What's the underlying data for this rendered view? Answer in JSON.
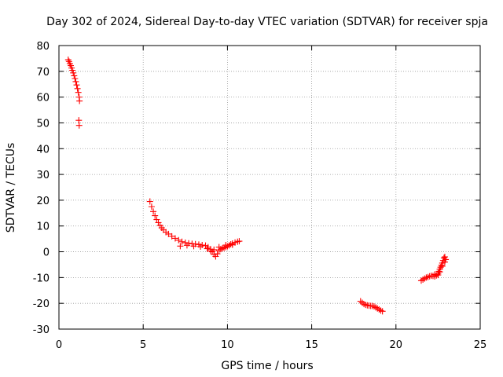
{
  "chart_data": {
    "type": "scatter",
    "title": "Day 302 of 2024, Sidereal Day-to-day VTEC variation (SDTVAR) for receiver spja",
    "xlabel": "GPS time / hours",
    "ylabel": "SDTVAR / TECUs",
    "xlim": [
      0,
      25
    ],
    "ylim": [
      -30,
      80
    ],
    "xticks": [
      0,
      5,
      10,
      15,
      20,
      25
    ],
    "xtick_labels": [
      "0",
      "5",
      "10",
      "15",
      "20",
      "25"
    ],
    "yticks": [
      -30,
      -20,
      -10,
      0,
      10,
      20,
      30,
      40,
      50,
      60,
      70,
      80
    ],
    "ytick_labels": [
      "-30",
      "-20",
      "-10",
      "0",
      "10",
      "20",
      "30",
      "40",
      "50",
      "60",
      "70",
      "80"
    ],
    "grid": true,
    "marker": "+",
    "color": "#ff0000",
    "series": [
      {
        "name": "segment-1",
        "points": [
          [
            0.55,
            74.5
          ],
          [
            0.6,
            73.8
          ],
          [
            0.65,
            73.0
          ],
          [
            0.7,
            72.2
          ],
          [
            0.75,
            71.3
          ],
          [
            0.8,
            70.4
          ],
          [
            0.85,
            69.4
          ],
          [
            0.9,
            68.3
          ],
          [
            0.95,
            67.2
          ],
          [
            1.0,
            66.0
          ],
          [
            1.05,
            64.7
          ],
          [
            1.1,
            63.3
          ],
          [
            1.15,
            61.8
          ],
          [
            1.2,
            60.0
          ],
          [
            1.22,
            58.5
          ],
          [
            1.18,
            51.0
          ],
          [
            1.2,
            49.0
          ]
        ]
      },
      {
        "name": "segment-2",
        "points": [
          [
            5.4,
            19.5
          ],
          [
            5.5,
            17.5
          ],
          [
            5.6,
            15.6
          ],
          [
            5.7,
            14.0
          ],
          [
            5.8,
            12.5
          ],
          [
            5.9,
            11.3
          ],
          [
            6.0,
            10.2
          ],
          [
            6.1,
            9.3
          ],
          [
            6.2,
            8.5
          ],
          [
            6.35,
            7.6
          ],
          [
            6.5,
            6.9
          ],
          [
            6.7,
            6.0
          ],
          [
            6.9,
            5.2
          ],
          [
            7.1,
            4.5
          ],
          [
            7.3,
            3.9
          ],
          [
            7.5,
            3.5
          ],
          [
            7.7,
            3.3
          ],
          [
            7.9,
            3.1
          ],
          [
            8.1,
            3.0
          ],
          [
            8.3,
            2.8
          ],
          [
            8.5,
            2.6
          ],
          [
            8.7,
            2.4
          ],
          [
            8.85,
            1.8
          ],
          [
            9.0,
            1.0
          ],
          [
            9.1,
            0.0
          ],
          [
            9.2,
            -1.0
          ],
          [
            9.3,
            -1.8
          ],
          [
            9.4,
            -0.8
          ],
          [
            9.5,
            0.4
          ],
          [
            9.6,
            1.0
          ],
          [
            9.7,
            1.3
          ],
          [
            9.8,
            1.5
          ],
          [
            9.9,
            1.8
          ],
          [
            10.0,
            2.1
          ],
          [
            10.1,
            2.5
          ],
          [
            10.2,
            2.9
          ],
          [
            10.3,
            3.2
          ],
          [
            10.45,
            3.6
          ],
          [
            10.6,
            3.9
          ],
          [
            10.7,
            4.1
          ],
          [
            7.2,
            2.2
          ],
          [
            7.6,
            2.5
          ],
          [
            8.0,
            2.2
          ],
          [
            8.4,
            2.0
          ],
          [
            8.8,
            1.2
          ],
          [
            9.0,
            0.3
          ],
          [
            9.2,
            0.8
          ],
          [
            9.5,
            1.8
          ],
          [
            9.9,
            2.6
          ],
          [
            10.3,
            2.7
          ]
        ]
      },
      {
        "name": "segment-3",
        "points": [
          [
            17.9,
            -19.2
          ],
          [
            18.0,
            -19.8
          ],
          [
            18.1,
            -20.3
          ],
          [
            18.2,
            -20.6
          ],
          [
            18.3,
            -20.8
          ],
          [
            18.4,
            -20.9
          ],
          [
            18.5,
            -21.0
          ],
          [
            18.6,
            -21.0
          ],
          [
            18.7,
            -21.2
          ],
          [
            18.8,
            -21.6
          ],
          [
            18.9,
            -22.0
          ],
          [
            19.0,
            -22.4
          ],
          [
            19.1,
            -22.8
          ],
          [
            19.2,
            -23.1
          ]
        ]
      },
      {
        "name": "segment-4",
        "points": [
          [
            21.5,
            -11.2
          ],
          [
            21.6,
            -10.8
          ],
          [
            21.7,
            -10.4
          ],
          [
            21.8,
            -10.0
          ],
          [
            21.9,
            -9.8
          ],
          [
            22.0,
            -9.5
          ],
          [
            22.1,
            -9.3
          ],
          [
            22.2,
            -9.4
          ],
          [
            22.3,
            -9.6
          ],
          [
            22.4,
            -9.2
          ],
          [
            22.5,
            -8.4
          ],
          [
            22.55,
            -7.6
          ],
          [
            22.6,
            -6.8
          ],
          [
            22.65,
            -6.0
          ],
          [
            22.7,
            -5.2
          ],
          [
            22.75,
            -4.4
          ],
          [
            22.8,
            -3.4
          ],
          [
            22.85,
            -2.4
          ],
          [
            22.9,
            -2.0
          ],
          [
            22.95,
            -3.0
          ],
          [
            22.3,
            -8.8
          ],
          [
            22.5,
            -9.0
          ],
          [
            22.6,
            -7.8
          ],
          [
            22.75,
            -5.6
          ],
          [
            22.9,
            -4.0
          ]
        ]
      }
    ]
  }
}
